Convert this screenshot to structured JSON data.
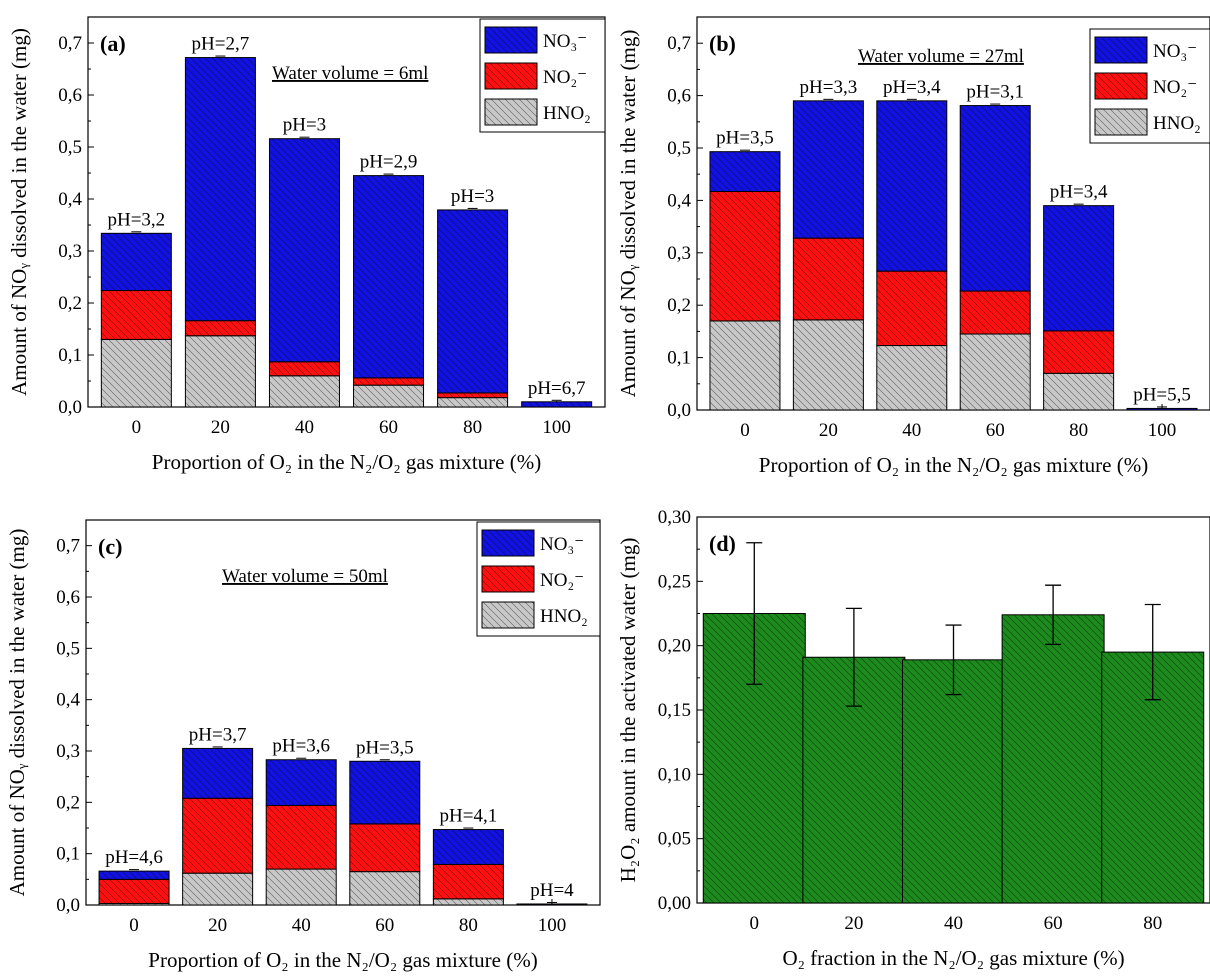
{
  "colors": {
    "no3": "#1212e0",
    "no2": "#ff1010",
    "hno2": "#c8c8c8",
    "h2o2": "#1d8a1d"
  },
  "legend": {
    "no3": "NO₃⁻",
    "no2": "NO₂⁻",
    "hno2": "HNO₂"
  },
  "chart_data": [
    {
      "panel": "(a)",
      "type": "bar",
      "stacked": true,
      "annotation": "Water volume = 6ml",
      "xlabel": "Proportion of O₂ in the N₂/O₂ gas mixture (%)",
      "ylabel": "Amount of NOᵧ dissolved in the water (mg)",
      "categories": [
        "0",
        "20",
        "40",
        "60",
        "80",
        "100"
      ],
      "ylim": [
        0,
        0.75
      ],
      "yticks": [
        "0,0",
        "0,1",
        "0,2",
        "0,3",
        "0,4",
        "0,5",
        "0,6",
        "0,7"
      ],
      "ph_labels": [
        "pH=3,2",
        "pH=2,7",
        "pH=3",
        "pH=2,9",
        "pH=3",
        "pH=6,7"
      ],
      "series": [
        {
          "key": "hno2",
          "name": "HNO₂",
          "values": [
            0.13,
            0.137,
            0.06,
            0.042,
            0.018,
            0
          ]
        },
        {
          "key": "no2",
          "name": "NO₂⁻",
          "values": [
            0.094,
            0.029,
            0.027,
            0.014,
            0.009,
            0
          ]
        },
        {
          "key": "no3",
          "name": "NO₃⁻",
          "values": [
            0.11,
            0.506,
            0.429,
            0.389,
            0.352,
            0.01
          ]
        }
      ],
      "legend_position": "top-right"
    },
    {
      "panel": "(b)",
      "type": "bar",
      "stacked": true,
      "annotation": "Water volume = 27ml",
      "xlabel": "Proportion of O₂ in the N₂/O₂ gas mixture (%)",
      "ylabel": "Amount of NOᵧ dissolved in the water (mg)",
      "categories": [
        "0",
        "20",
        "40",
        "60",
        "80",
        "100"
      ],
      "ylim": [
        0,
        0.75
      ],
      "yticks": [
        "0,0",
        "0,1",
        "0,2",
        "0,3",
        "0,4",
        "0,5",
        "0,6",
        "0,7"
      ],
      "ph_labels": [
        "pH=3,5",
        "pH=3,3",
        "pH=3,4",
        "pH=3,1",
        "pH=3,4",
        "pH=5,5"
      ],
      "series": [
        {
          "key": "hno2",
          "name": "HNO₂",
          "values": [
            0.17,
            0.172,
            0.123,
            0.145,
            0.07,
            0
          ]
        },
        {
          "key": "no2",
          "name": "NO₂⁻",
          "values": [
            0.247,
            0.156,
            0.142,
            0.082,
            0.081,
            0
          ]
        },
        {
          "key": "no3",
          "name": "NO₃⁻",
          "values": [
            0.076,
            0.262,
            0.325,
            0.354,
            0.239,
            0.003
          ]
        }
      ],
      "legend_position": "top-right"
    },
    {
      "panel": "(c)",
      "type": "bar",
      "stacked": true,
      "annotation": "Water volume = 50ml",
      "xlabel": "Proportion of O₂ in the N₂/O₂ gas mixture (%)",
      "ylabel": "Amount of NOᵧ dissolved in the water (mg)",
      "categories": [
        "0",
        "20",
        "40",
        "60",
        "80",
        "100"
      ],
      "ylim": [
        0,
        0.75
      ],
      "yticks": [
        "0,0",
        "0,1",
        "0,2",
        "0,3",
        "0,4",
        "0,5",
        "0,6",
        "0,7"
      ],
      "ph_labels": [
        "pH=4,6",
        "pH=3,7",
        "pH=3,6",
        "pH=3,5",
        "pH=4,1",
        "pH=4"
      ],
      "series": [
        {
          "key": "hno2",
          "name": "HNO₂",
          "values": [
            0.003,
            0.062,
            0.07,
            0.065,
            0.012,
            0
          ]
        },
        {
          "key": "no2",
          "name": "NO₂⁻",
          "values": [
            0.047,
            0.146,
            0.124,
            0.093,
            0.067,
            0
          ]
        },
        {
          "key": "no3",
          "name": "NO₃⁻",
          "values": [
            0.016,
            0.097,
            0.089,
            0.122,
            0.068,
            0.002
          ]
        }
      ],
      "legend_position": "top-right"
    },
    {
      "panel": "(d)",
      "type": "bar",
      "xlabel": "O₂ fraction in the N₂/O₂ gas mixture (%)",
      "ylabel": "H₂O₂ amount in the activated water (mg)",
      "categories": [
        "0",
        "20",
        "40",
        "60",
        "80"
      ],
      "ylim": [
        0,
        0.3
      ],
      "yticks": [
        "0,00",
        "0,05",
        "0,10",
        "0,15",
        "0,20",
        "0,25",
        "0,30"
      ],
      "series": [
        {
          "key": "h2o2",
          "values": [
            0.225,
            0.191,
            0.189,
            0.224,
            0.195
          ],
          "errors": [
            0.055,
            0.038,
            0.027,
            0.023,
            0.037
          ]
        }
      ]
    }
  ]
}
